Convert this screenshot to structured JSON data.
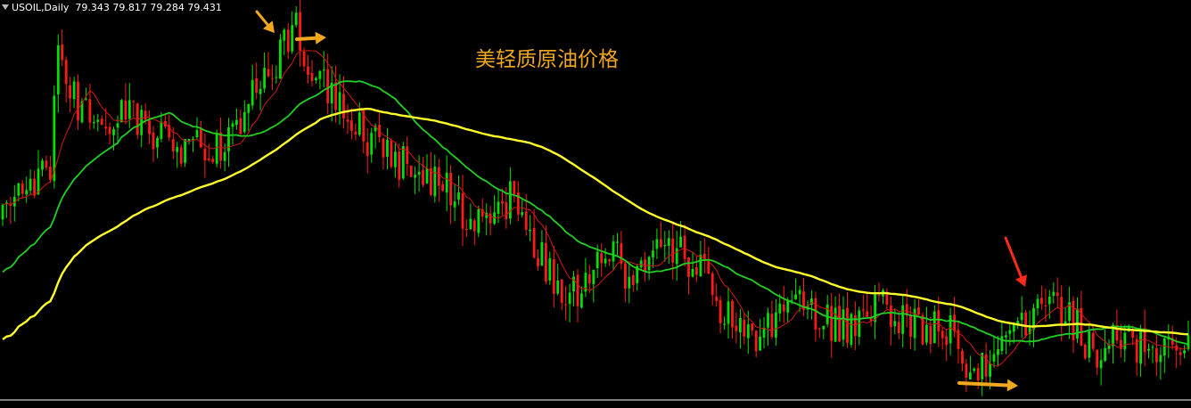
{
  "header": {
    "symbol": "USOIL,Daily",
    "open": "79.343",
    "high": "79.817",
    "low": "79.284",
    "close": "79.431"
  },
  "colors": {
    "background": "#000000",
    "bull_candle": "#00e000",
    "bear_candle": "#ff1a1a",
    "ma_fast": "#d01818",
    "ma_mid": "#20d020",
    "ma_slow": "#ffff2a",
    "annotation_arrow_orange": "#f2a81c",
    "annotation_arrow_red": "#ff2a1a",
    "title_text": "#f2a81c"
  },
  "chart_data": {
    "type": "candlestick",
    "title": "美轻质原油价格",
    "symbol": "USOIL",
    "timeframe": "Daily",
    "grid": false,
    "legend": "none",
    "candle_count": 300,
    "price_path_keypoints": [
      {
        "i": 0,
        "price": 0.34
      },
      {
        "i": 12,
        "price": 0.5
      },
      {
        "i": 14,
        "price": 0.78
      },
      {
        "i": 18,
        "price": 0.68
      },
      {
        "i": 22,
        "price": 0.6
      },
      {
        "i": 30,
        "price": 0.64
      },
      {
        "i": 40,
        "price": 0.55
      },
      {
        "i": 55,
        "price": 0.52
      },
      {
        "i": 65,
        "price": 0.7
      },
      {
        "i": 74,
        "price": 0.86
      },
      {
        "i": 78,
        "price": 0.74
      },
      {
        "i": 85,
        "price": 0.64
      },
      {
        "i": 90,
        "price": 0.58
      },
      {
        "i": 100,
        "price": 0.5
      },
      {
        "i": 110,
        "price": 0.45
      },
      {
        "i": 118,
        "price": 0.32
      },
      {
        "i": 128,
        "price": 0.4
      },
      {
        "i": 135,
        "price": 0.26
      },
      {
        "i": 142,
        "price": 0.12
      },
      {
        "i": 152,
        "price": 0.26
      },
      {
        "i": 160,
        "price": 0.18
      },
      {
        "i": 168,
        "price": 0.28
      },
      {
        "i": 175,
        "price": 0.22
      },
      {
        "i": 182,
        "price": 0.08
      },
      {
        "i": 190,
        "price": 0.02
      },
      {
        "i": 198,
        "price": 0.12
      },
      {
        "i": 206,
        "price": 0.08
      },
      {
        "i": 214,
        "price": 0.05
      },
      {
        "i": 222,
        "price": 0.12
      },
      {
        "i": 230,
        "price": 0.06
      },
      {
        "i": 238,
        "price": 0.06
      },
      {
        "i": 244,
        "price": -0.07
      },
      {
        "i": 250,
        "price": -0.03
      },
      {
        "i": 256,
        "price": 0.07
      },
      {
        "i": 264,
        "price": 0.12
      },
      {
        "i": 270,
        "price": 0.07
      },
      {
        "i": 276,
        "price": -0.02
      },
      {
        "i": 282,
        "price": 0.02
      },
      {
        "i": 290,
        "price": 0.0
      },
      {
        "i": 299,
        "price": -0.02
      }
    ],
    "moving_averages": [
      {
        "name": "",
        "period": 10,
        "color": "#d01818"
      },
      {
        "name": "",
        "period": 30,
        "color": "#20d020"
      },
      {
        "name": "",
        "period": 80,
        "color": "#ffff2a"
      }
    ],
    "annotations": [
      {
        "type": "arrow",
        "color": "#f2a81c",
        "direction": "down-right",
        "near_candle": 70
      },
      {
        "type": "arrow",
        "color": "#f2a81c",
        "direction": "right",
        "near_candle": 78
      },
      {
        "type": "arrow",
        "color": "#ff2a1a",
        "direction": "down-right",
        "near_candle": 255
      },
      {
        "type": "arrow",
        "color": "#f2a81c",
        "direction": "right",
        "near_candle": 245
      }
    ]
  }
}
